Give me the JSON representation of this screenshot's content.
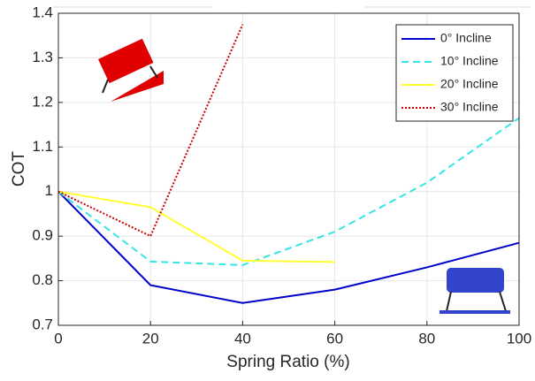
{
  "chart_data": {
    "type": "line",
    "xlabel": "Spring Ratio (%)",
    "ylabel": "COT",
    "x": [
      0,
      20,
      40,
      60,
      80,
      100
    ],
    "series": [
      {
        "name": "0° Incline",
        "color": "#0000cc",
        "linestyle": "solid",
        "values": [
          1,
          0.79,
          0.75,
          0.78,
          0.83,
          0.885
        ]
      },
      {
        "name": "10° Incline",
        "color": "#33e6e6",
        "linestyle": "dashed",
        "values": [
          1,
          0.843,
          0.835,
          0.91,
          1.02,
          1.165
        ]
      },
      {
        "name": "20° Incline",
        "color": "#ffff33",
        "linestyle": "solid",
        "values": [
          1,
          0.965,
          0.845,
          0.842,
          null,
          null
        ]
      },
      {
        "name": "30° Incline",
        "color": "#cc0000",
        "linestyle": "dotted",
        "values": [
          1,
          0.9,
          1.375,
          null,
          null,
          null
        ]
      }
    ],
    "xlim": [
      0,
      100
    ],
    "xticks": [
      0,
      20,
      40,
      60,
      80,
      100
    ],
    "ylim": [
      0.7,
      1.4
    ],
    "yticks": [
      0.7,
      0.8,
      0.9,
      1,
      1.1,
      1.2,
      1.3,
      1.4
    ],
    "grid": true,
    "legend": "upper right"
  }
}
